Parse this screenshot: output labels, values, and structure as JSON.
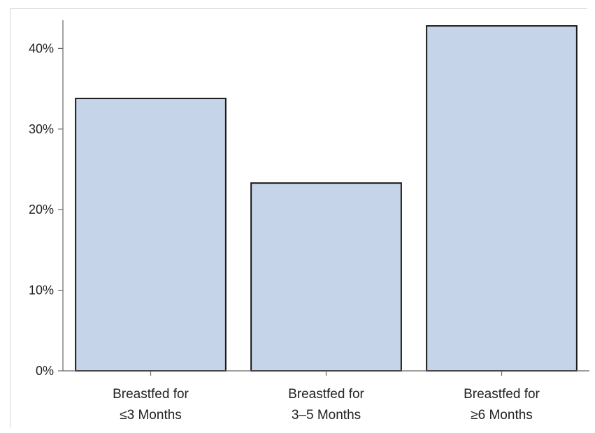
{
  "chart_data": {
    "type": "bar",
    "categories": [
      [
        "Breastfed for",
        "≤3 Months"
      ],
      [
        "Breastfed for",
        "3–5 Months"
      ],
      [
        "Breastfed for",
        "≥6 Months"
      ]
    ],
    "values": [
      33.8,
      23.3,
      42.8
    ],
    "ylim": [
      0,
      43.5
    ],
    "yticks": [
      0,
      10,
      20,
      30,
      40
    ],
    "ytick_labels": [
      "0%",
      "10%",
      "20%",
      "30%",
      "40%"
    ],
    "grid": false,
    "colors": {
      "bar_fill": "#c5d4e8",
      "bar_stroke": "#1a1a1a",
      "axis": "#666666"
    }
  }
}
